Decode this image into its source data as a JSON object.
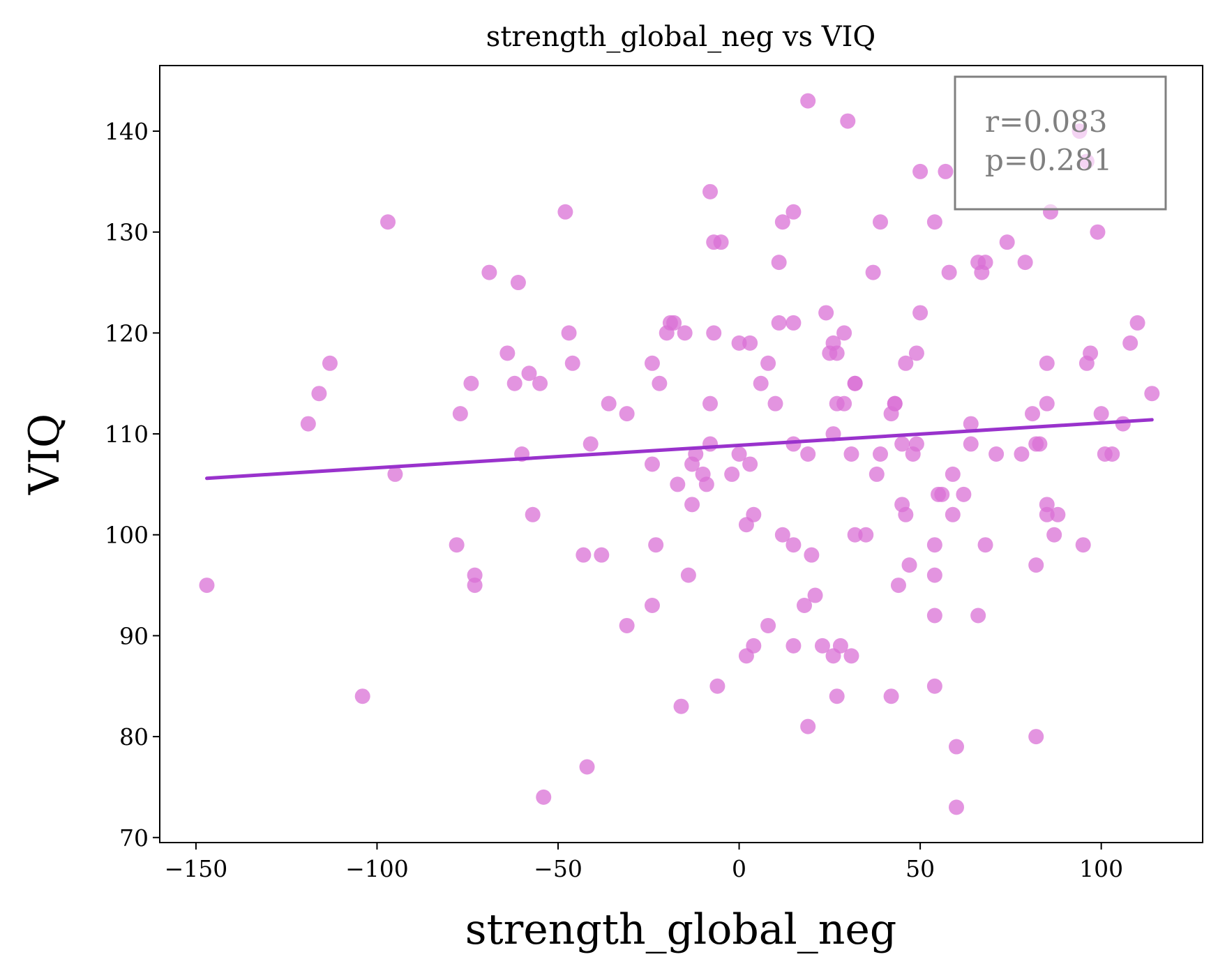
{
  "chart_data": {
    "type": "scatter",
    "title": "strength_global_neg vs VIQ",
    "xlabel": "strength_global_neg",
    "ylabel": "VIQ",
    "xlim": [
      -160,
      128
    ],
    "ylim": [
      69.5,
      146.5
    ],
    "xticks": [
      -150,
      -100,
      -50,
      0,
      50,
      100
    ],
    "xtick_labels": [
      "−150",
      "−100",
      "−50",
      "0",
      "50",
      "100"
    ],
    "yticks": [
      70,
      80,
      90,
      100,
      110,
      120,
      130,
      140
    ],
    "ytick_labels": [
      "70",
      "80",
      "90",
      "100",
      "110",
      "120",
      "130",
      "140"
    ],
    "grid": false,
    "colors": {
      "points": "#da70d6",
      "fit_line": "#9932cc",
      "annotation": "#808080"
    },
    "annotation": {
      "lines": [
        "r=0.083",
        "p=0.281"
      ],
      "position": "top-right"
    },
    "fit_line": {
      "x": [
        -147,
        114
      ],
      "y": [
        105.6,
        111.4
      ]
    },
    "points": [
      [
        -147,
        95
      ],
      [
        -119,
        111
      ],
      [
        -116,
        114
      ],
      [
        -113,
        117
      ],
      [
        -104,
        84
      ],
      [
        -97,
        131
      ],
      [
        -95,
        106
      ],
      [
        -78,
        99
      ],
      [
        -77,
        112
      ],
      [
        -74,
        115
      ],
      [
        -73,
        96
      ],
      [
        -73,
        95
      ],
      [
        -69,
        126
      ],
      [
        -64,
        118
      ],
      [
        -62,
        115
      ],
      [
        -61,
        125
      ],
      [
        -60,
        108
      ],
      [
        -58,
        116
      ],
      [
        -57,
        102
      ],
      [
        -55,
        115
      ],
      [
        -54,
        74
      ],
      [
        -48,
        132
      ],
      [
        -47,
        120
      ],
      [
        -46,
        117
      ],
      [
        -43,
        98
      ],
      [
        -42,
        77
      ],
      [
        -41,
        109
      ],
      [
        -38,
        98
      ],
      [
        -36,
        113
      ],
      [
        -31,
        112
      ],
      [
        -31,
        91
      ],
      [
        -24,
        117
      ],
      [
        -24,
        107
      ],
      [
        -23,
        99
      ],
      [
        -24,
        93
      ],
      [
        -22,
        115
      ],
      [
        -20,
        120
      ],
      [
        -19,
        121
      ],
      [
        -18,
        121
      ],
      [
        -17,
        105
      ],
      [
        -16,
        83
      ],
      [
        -15,
        120
      ],
      [
        -14,
        96
      ],
      [
        -13,
        107
      ],
      [
        -13,
        103
      ],
      [
        -12,
        108
      ],
      [
        -10,
        106
      ],
      [
        -9,
        105
      ],
      [
        -8,
        113
      ],
      [
        -8,
        134
      ],
      [
        -7,
        129
      ],
      [
        -7,
        120
      ],
      [
        -8,
        109
      ],
      [
        -5,
        129
      ],
      [
        -6,
        85
      ],
      [
        -2,
        106
      ],
      [
        0,
        119
      ],
      [
        0,
        108
      ],
      [
        2,
        101
      ],
      [
        2,
        88
      ],
      [
        3,
        119
      ],
      [
        3,
        107
      ],
      [
        4,
        102
      ],
      [
        4,
        89
      ],
      [
        6,
        115
      ],
      [
        8,
        117
      ],
      [
        8,
        91
      ],
      [
        10,
        113
      ],
      [
        11,
        121
      ],
      [
        11,
        127
      ],
      [
        12,
        100
      ],
      [
        12,
        131
      ],
      [
        15,
        132
      ],
      [
        15,
        121
      ],
      [
        15,
        109
      ],
      [
        15,
        99
      ],
      [
        15,
        89
      ],
      [
        18,
        93
      ],
      [
        19,
        108
      ],
      [
        19,
        81
      ],
      [
        19,
        143
      ],
      [
        20,
        98
      ],
      [
        21,
        94
      ],
      [
        23,
        89
      ],
      [
        24,
        122
      ],
      [
        25,
        118
      ],
      [
        26,
        119
      ],
      [
        26,
        110
      ],
      [
        26,
        88
      ],
      [
        27,
        118
      ],
      [
        27,
        113
      ],
      [
        27,
        84
      ],
      [
        28,
        89
      ],
      [
        29,
        113
      ],
      [
        29,
        120
      ],
      [
        30,
        141
      ],
      [
        31,
        108
      ],
      [
        31,
        88
      ],
      [
        32,
        115
      ],
      [
        32,
        115
      ],
      [
        32,
        100
      ],
      [
        35,
        100
      ],
      [
        37,
        126
      ],
      [
        38,
        106
      ],
      [
        39,
        108
      ],
      [
        39,
        131
      ],
      [
        42,
        112
      ],
      [
        42,
        84
      ],
      [
        43,
        113
      ],
      [
        43,
        113
      ],
      [
        44,
        95
      ],
      [
        45,
        103
      ],
      [
        45,
        109
      ],
      [
        46,
        102
      ],
      [
        46,
        117
      ],
      [
        47,
        97
      ],
      [
        48,
        108
      ],
      [
        49,
        109
      ],
      [
        49,
        118
      ],
      [
        50,
        136
      ],
      [
        50,
        122
      ],
      [
        54,
        131
      ],
      [
        54,
        99
      ],
      [
        54,
        96
      ],
      [
        54,
        92
      ],
      [
        54,
        85
      ],
      [
        55,
        104
      ],
      [
        56,
        104
      ],
      [
        57,
        136
      ],
      [
        58,
        126
      ],
      [
        59,
        102
      ],
      [
        59,
        106
      ],
      [
        60,
        79
      ],
      [
        60,
        73
      ],
      [
        62,
        104
      ],
      [
        64,
        111
      ],
      [
        64,
        109
      ],
      [
        66,
        127
      ],
      [
        66,
        92
      ],
      [
        67,
        126
      ],
      [
        68,
        127
      ],
      [
        68,
        99
      ],
      [
        71,
        108
      ],
      [
        74,
        129
      ],
      [
        78,
        108
      ],
      [
        79,
        127
      ],
      [
        81,
        112
      ],
      [
        82,
        97
      ],
      [
        82,
        80
      ],
      [
        82,
        109
      ],
      [
        83,
        109
      ],
      [
        85,
        117
      ],
      [
        85,
        103
      ],
      [
        85,
        113
      ],
      [
        85,
        102
      ],
      [
        86,
        132
      ],
      [
        87,
        100
      ],
      [
        88,
        102
      ],
      [
        94,
        140
      ],
      [
        95,
        99
      ],
      [
        96,
        117
      ],
      [
        96,
        137
      ],
      [
        97,
        118
      ],
      [
        99,
        130
      ],
      [
        100,
        112
      ],
      [
        101,
        108
      ],
      [
        103,
        108
      ],
      [
        106,
        111
      ],
      [
        108,
        119
      ],
      [
        110,
        121
      ],
      [
        114,
        114
      ]
    ]
  }
}
